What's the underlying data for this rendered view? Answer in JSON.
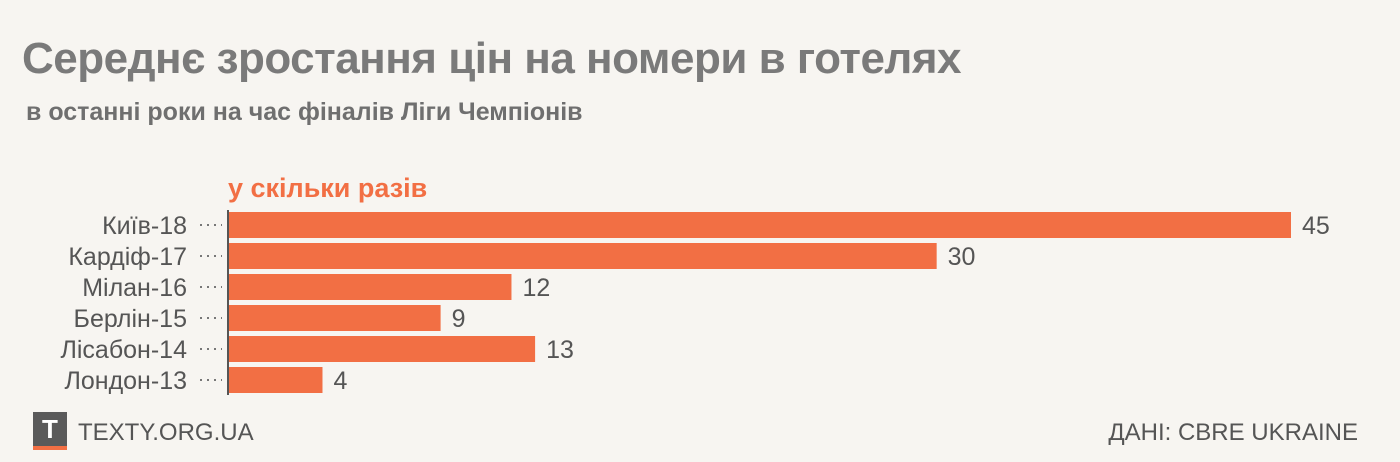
{
  "header": {
    "title": "Середнє зростання цін на номери в готелях",
    "subtitle": "в останні роки на час фіналів Ліги Чемпіонів"
  },
  "chart_data": {
    "type": "bar",
    "orientation": "horizontal",
    "unit_label": "у скільки разів",
    "categories": [
      "Київ-18",
      "Кардіф-17",
      "Мілан-16",
      "Берлін-15",
      "Лісабон-14",
      "Лондон-13"
    ],
    "values": [
      45,
      30,
      12,
      9,
      13,
      4
    ],
    "bar_color": "#f26f44",
    "xlim": [
      0,
      45
    ],
    "grid": false
  },
  "footer": {
    "logo": "T",
    "site": "TEXTY.ORG.UA",
    "source": "ДАНІ: CBRE UKRAINE"
  }
}
